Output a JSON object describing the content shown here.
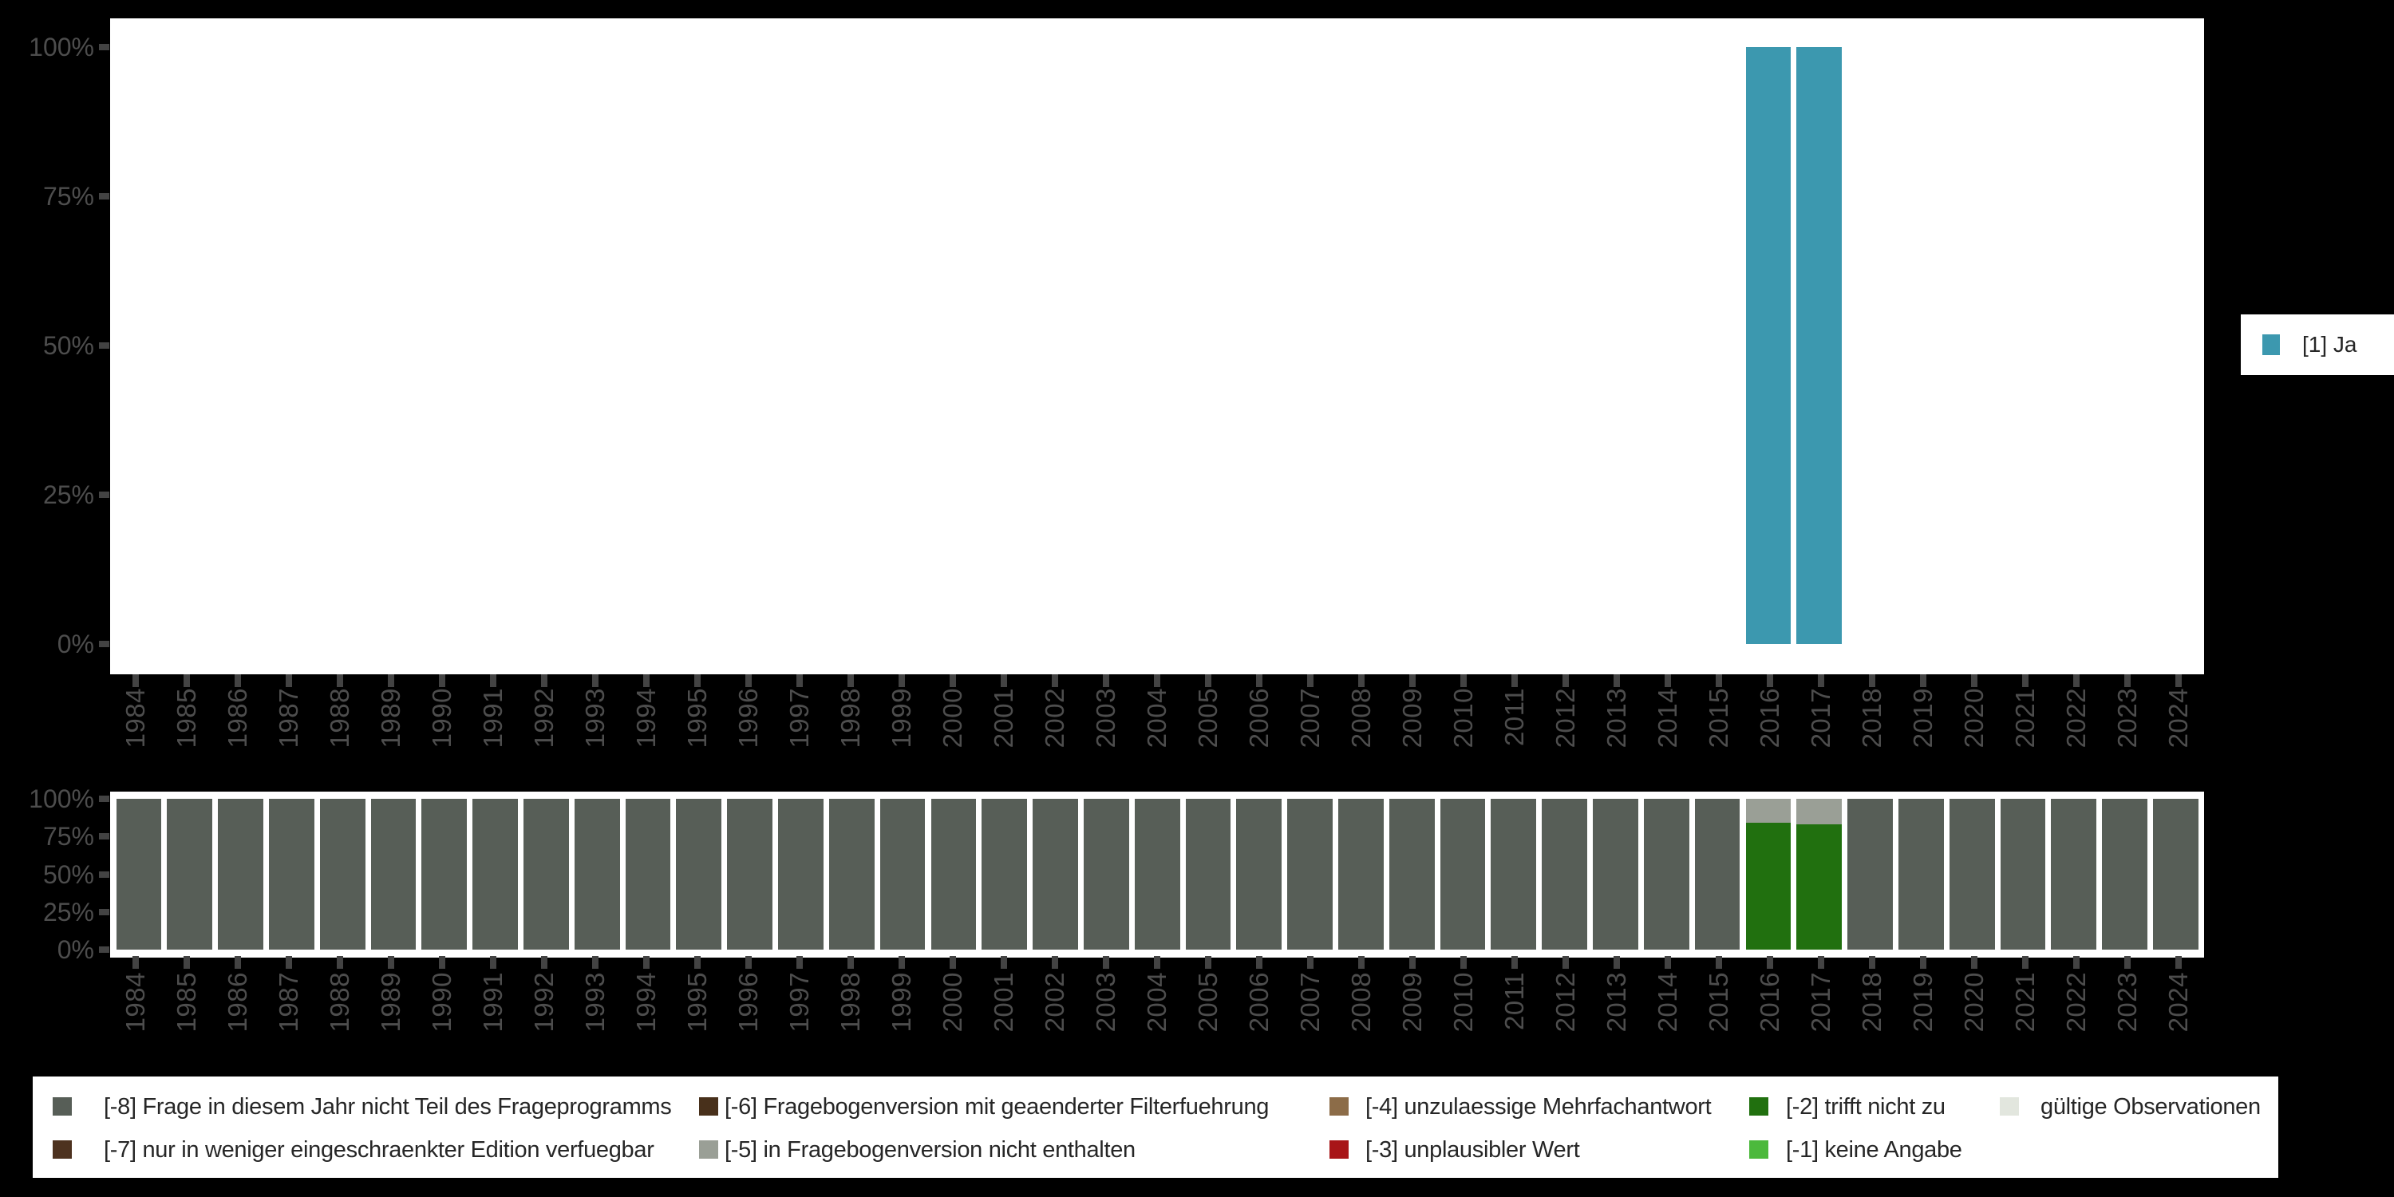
{
  "chart_data": [
    {
      "type": "bar",
      "title": "",
      "categories": [
        "1984",
        "1985",
        "1986",
        "1987",
        "1988",
        "1989",
        "1990",
        "1991",
        "1992",
        "1993",
        "1994",
        "1995",
        "1996",
        "1997",
        "1998",
        "1999",
        "2000",
        "2001",
        "2002",
        "2003",
        "2004",
        "2005",
        "2006",
        "2007",
        "2008",
        "2009",
        "2010",
        "2011",
        "2012",
        "2013",
        "2014",
        "2015",
        "2016",
        "2017",
        "2018",
        "2019",
        "2020",
        "2021",
        "2022",
        "2023",
        "2024"
      ],
      "series": [
        {
          "name": "[1] Ja",
          "color": "#3C98AF",
          "values": [
            0,
            0,
            0,
            0,
            0,
            0,
            0,
            0,
            0,
            0,
            0,
            0,
            0,
            0,
            0,
            0,
            0,
            0,
            0,
            0,
            0,
            0,
            0,
            0,
            0,
            0,
            0,
            0,
            0,
            0,
            0,
            0,
            100,
            100,
            0,
            0,
            0,
            0,
            0,
            0,
            0
          ]
        }
      ],
      "y_tick_labels": [
        "100%",
        "75%",
        "50%",
        "25%",
        "0%"
      ],
      "ylim": [
        0,
        100
      ],
      "xlabel": "",
      "ylabel": "",
      "grid": false,
      "x_labels_rotated": true,
      "legend_position": "right"
    },
    {
      "type": "stacked-bar",
      "title": "",
      "categories": [
        "1984",
        "1985",
        "1986",
        "1987",
        "1988",
        "1989",
        "1990",
        "1991",
        "1992",
        "1993",
        "1994",
        "1995",
        "1996",
        "1997",
        "1998",
        "1999",
        "2000",
        "2001",
        "2002",
        "2003",
        "2004",
        "2005",
        "2006",
        "2007",
        "2008",
        "2009",
        "2010",
        "2011",
        "2012",
        "2013",
        "2014",
        "2015",
        "2016",
        "2017",
        "2018",
        "2019",
        "2020",
        "2021",
        "2022",
        "2023",
        "2024"
      ],
      "series": [
        {
          "name": "[-8] Frage in diesem Jahr nicht Teil des Frageprogramms",
          "color": "#575E57",
          "values": [
            100,
            100,
            100,
            100,
            100,
            100,
            100,
            100,
            100,
            100,
            100,
            100,
            100,
            100,
            100,
            100,
            100,
            100,
            100,
            100,
            100,
            100,
            100,
            100,
            100,
            100,
            100,
            100,
            100,
            100,
            100,
            100,
            0,
            0,
            100,
            100,
            100,
            100,
            100,
            100,
            100
          ]
        },
        {
          "name": "[-2] trifft nicht zu",
          "color": "#21700F",
          "values": [
            0,
            0,
            0,
            0,
            0,
            0,
            0,
            0,
            0,
            0,
            0,
            0,
            0,
            0,
            0,
            0,
            0,
            0,
            0,
            0,
            0,
            0,
            0,
            0,
            0,
            0,
            0,
            0,
            0,
            0,
            0,
            0,
            84,
            83,
            0,
            0,
            0,
            0,
            0,
            0,
            0
          ]
        },
        {
          "name": "[-5] in Fragebogenversion nicht enthalten",
          "color": "#9A9F96",
          "values": [
            0,
            0,
            0,
            0,
            0,
            0,
            0,
            0,
            0,
            0,
            0,
            0,
            0,
            0,
            0,
            0,
            0,
            0,
            0,
            0,
            0,
            0,
            0,
            0,
            0,
            0,
            0,
            0,
            0,
            0,
            0,
            0,
            16,
            17,
            0,
            0,
            0,
            0,
            0,
            0,
            0
          ]
        }
      ],
      "y_tick_labels": [
        "100%",
        "75%",
        "50%",
        "25%",
        "0%"
      ],
      "ylim": [
        0,
        100
      ],
      "xlabel": "",
      "ylabel": "",
      "grid": false,
      "x_labels_rotated": true,
      "legend_position": "bottom"
    }
  ],
  "missing_legend": {
    "rows": [
      [
        {
          "label": "[-8] Frage in diesem Jahr nicht Teil des Frageprogramms",
          "color": "#575E57"
        },
        {
          "label": "[-6] Fragebogenversion mit geaenderter Filterfuehrung",
          "color": "#48301B"
        },
        {
          "label": "[-4] unzulaessige Mehrfachantwort",
          "color": "#8C6C48"
        },
        {
          "label": "[-2] trifft nicht zu",
          "color": "#21700F"
        },
        {
          "label": "gültige Observationen",
          "color": "#E2E6DE"
        }
      ],
      [
        {
          "label": "[-7] nur in weniger eingeschraenkter Edition verfuegbar",
          "color": "#4D321F"
        },
        {
          "label": "[-5] in Fragebogenversion nicht enthalten",
          "color": "#9A9F96"
        },
        {
          "label": "[-3] unplausibler Wert",
          "color": "#A81518"
        },
        {
          "label": "[-1] keine Angabe",
          "color": "#4CB93C"
        }
      ]
    ]
  }
}
